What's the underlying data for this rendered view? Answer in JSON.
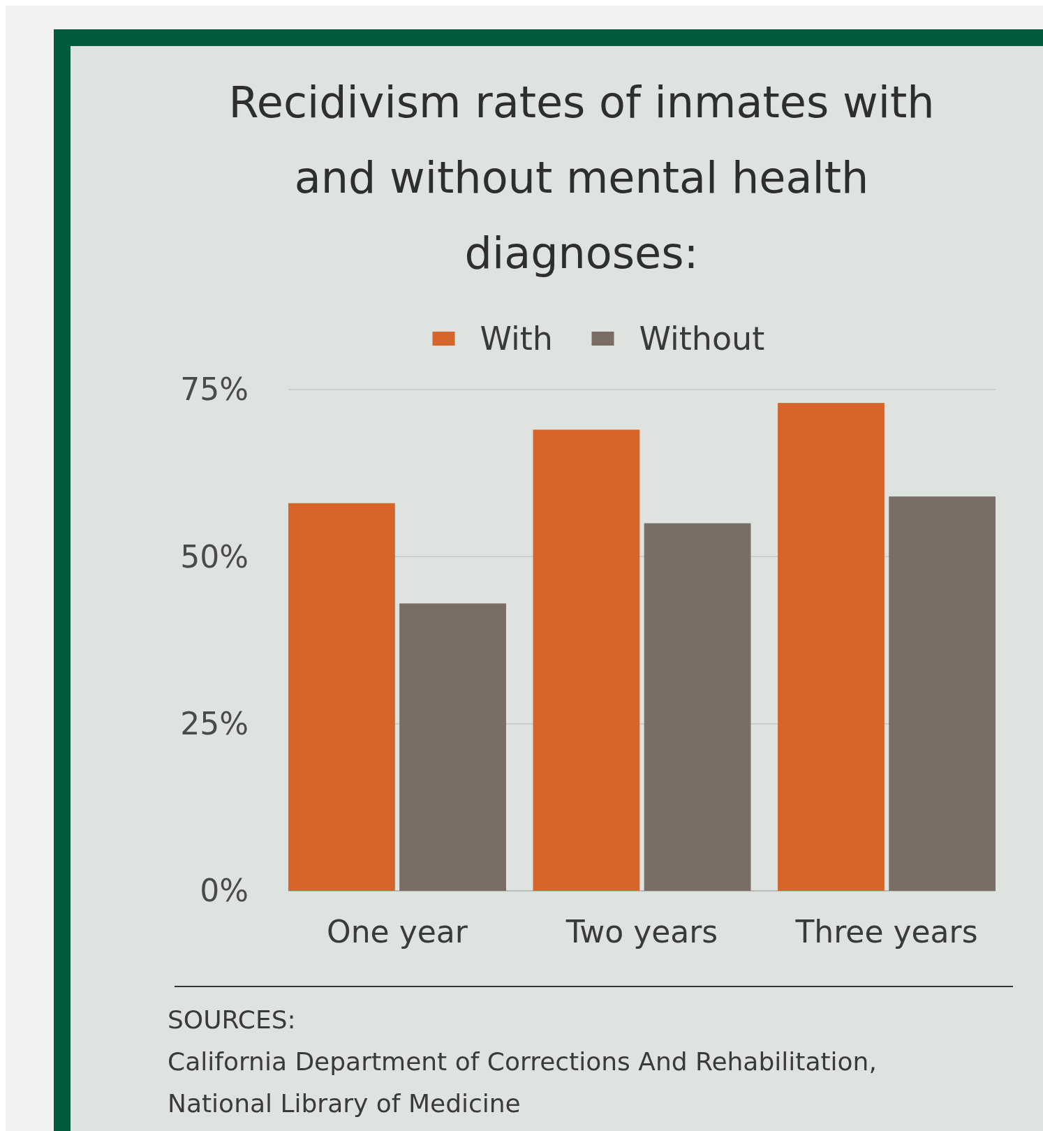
{
  "chart_data": {
    "type": "bar",
    "title": "Recidivism rates of inmates with and without mental health diagnoses:",
    "categories": [
      "One year",
      "Two years",
      "Three years"
    ],
    "series": [
      {
        "name": "With",
        "color": "#d5652a",
        "values": [
          58,
          69,
          73
        ]
      },
      {
        "name": "Without",
        "color": "#7a6d66",
        "values": [
          43,
          55,
          59
        ]
      }
    ],
    "ylim": [
      0,
      75
    ],
    "yticks": [
      {
        "value": 0,
        "label": "0%"
      },
      {
        "value": 25,
        "label": "25%"
      },
      {
        "value": 50,
        "label": "50%"
      },
      {
        "value": 75,
        "label": "75%"
      }
    ],
    "grid": "y",
    "legend": "top",
    "annotations": [
      "SOURCES:",
      "California Department of Corrections And Rehabilitation,",
      "National Library of Medicine"
    ]
  }
}
